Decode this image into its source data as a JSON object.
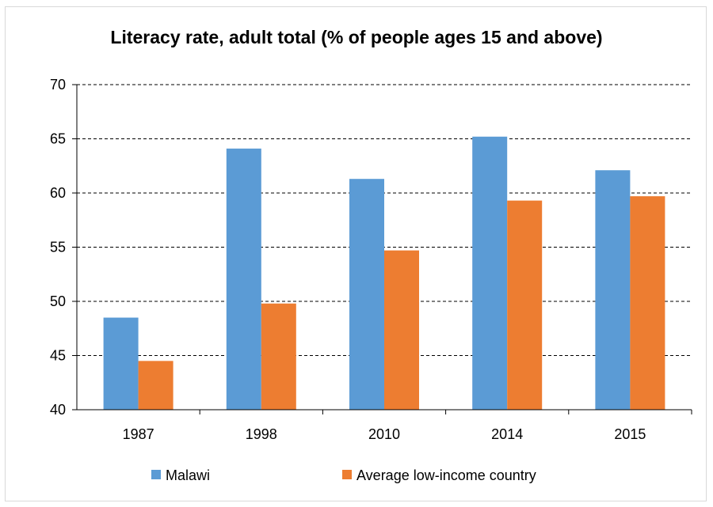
{
  "chart_data": {
    "type": "bar",
    "title": "Literacy rate, adult total (% of people ages 15 and above)",
    "categories": [
      "1987",
      "1998",
      "2010",
      "2014",
      "2015"
    ],
    "series": [
      {
        "name": "Malawi",
        "color": "#5b9bd5",
        "values": [
          48.5,
          64.1,
          61.3,
          65.2,
          62.1
        ]
      },
      {
        "name": "Average low-income country",
        "color": "#ed7d31",
        "values": [
          44.5,
          49.8,
          54.7,
          59.3,
          59.7
        ]
      }
    ],
    "ylim": [
      40,
      70
    ],
    "yticks": [
      "40",
      "45",
      "50",
      "55",
      "60",
      "65",
      "70"
    ],
    "grid": "dashed horizontal",
    "legend_position": "bottom"
  }
}
